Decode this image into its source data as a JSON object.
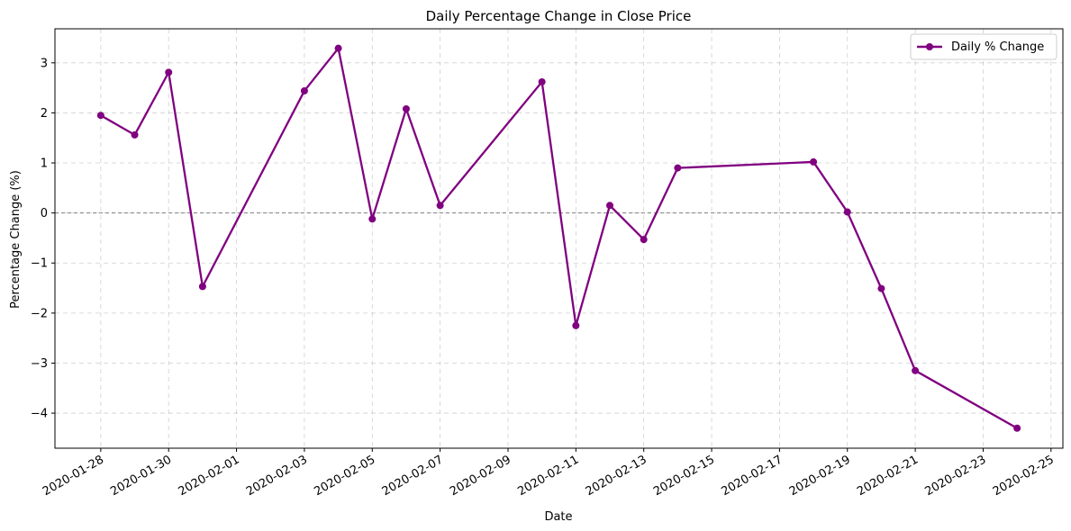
{
  "chart_data": {
    "type": "line",
    "title": "Daily Percentage Change in Close Price",
    "xlabel": "Date",
    "ylabel": "Percentage Change (%)",
    "x_ticks": [
      "2020-01-28",
      "2020-01-30",
      "2020-02-01",
      "2020-02-03",
      "2020-02-05",
      "2020-02-07",
      "2020-02-09",
      "2020-02-11",
      "2020-02-13",
      "2020-02-15",
      "2020-02-17",
      "2020-02-19",
      "2020-02-21",
      "2020-02-23",
      "2020-02-25"
    ],
    "y_ticks": [
      -4,
      -3,
      -2,
      -1,
      0,
      1,
      2,
      3
    ],
    "y_tick_labels": [
      "−4",
      "−3",
      "−2",
      "−1",
      "0",
      "1",
      "2",
      "3"
    ],
    "xlim": [
      "2020-01-26.65",
      "2020-02-25.35"
    ],
    "ylim": [
      -4.7,
      3.68
    ],
    "grid": true,
    "reference_line": {
      "y": 0,
      "style": "dashed",
      "color": "#808080"
    },
    "legend": {
      "position": "top-right"
    },
    "series": [
      {
        "name": "Daily % Change",
        "color": "#800080",
        "marker": "circle",
        "x": [
          "2020-01-28",
          "2020-01-29",
          "2020-01-30",
          "2020-01-31",
          "2020-02-03",
          "2020-02-04",
          "2020-02-05",
          "2020-02-06",
          "2020-02-07",
          "2020-02-10",
          "2020-02-11",
          "2020-02-12",
          "2020-02-13",
          "2020-02-14",
          "2020-02-18",
          "2020-02-19",
          "2020-02-20",
          "2020-02-21",
          "2020-02-24"
        ],
        "y": [
          1.95,
          1.56,
          2.81,
          -1.47,
          2.44,
          3.29,
          -0.12,
          2.08,
          0.15,
          2.62,
          -2.25,
          0.15,
          -0.53,
          0.9,
          1.02,
          0.02,
          -1.51,
          -3.15,
          -4.3
        ]
      }
    ]
  }
}
